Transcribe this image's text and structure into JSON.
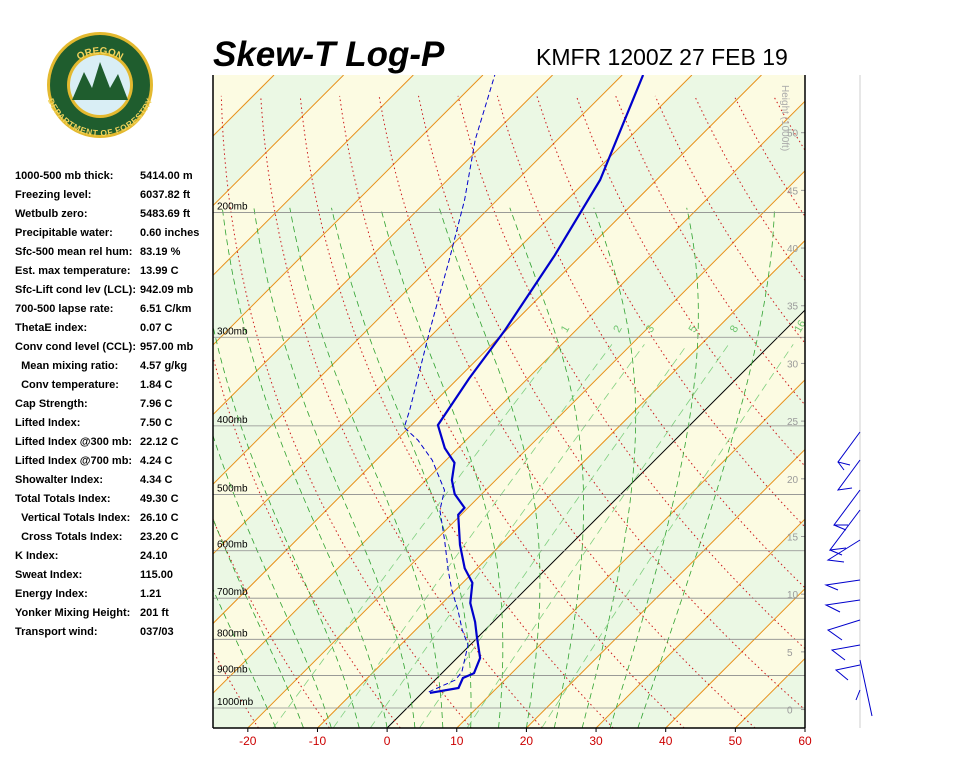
{
  "logo": {
    "top": "OREGON",
    "bottom": "DEPARTMENT OF FORESTRY"
  },
  "stats": [
    [
      "1000-500 mb thick:",
      "5414.00 m"
    ],
    [
      "Freezing level:",
      "6037.82 ft"
    ],
    [
      "Wetbulb zero:",
      "5483.69 ft"
    ],
    [
      "Precipitable water:",
      "0.60 inches"
    ],
    [
      "Sfc-500 mean rel hum:",
      "83.19 %"
    ],
    [
      "Est. max temperature:",
      "13.99 C"
    ],
    [
      "Sfc-Lift cond lev (LCL):",
      "942.09 mb"
    ],
    [
      "700-500 lapse rate:",
      "6.51 C/km"
    ],
    [
      "ThetaE index:",
      "0.07 C"
    ],
    [
      "Conv cond level (CCL):",
      "957.00 mb"
    ],
    [
      "  Mean mixing ratio:",
      "4.57 g/kg"
    ],
    [
      "  Conv temperature:",
      "1.84 C"
    ],
    [
      "Cap Strength:",
      "7.96 C"
    ],
    [
      "Lifted Index:",
      "7.50 C"
    ],
    [
      "Lifted Index @300 mb:",
      "22.12 C"
    ],
    [
      "Lifted Index @700 mb:",
      "4.24 C"
    ],
    [
      "Showalter Index:",
      "4.34 C"
    ],
    [
      "Total Totals Index:",
      "49.30 C"
    ],
    [
      "  Vertical Totals Index:",
      "26.10 C"
    ],
    [
      "  Cross Totals Index:",
      "23.20 C"
    ],
    [
      "K Index:",
      "24.10"
    ],
    [
      "Sweat Index:",
      "115.00"
    ],
    [
      "Energy Index:",
      "1.21"
    ],
    [
      "Yonker Mixing Height:",
      "201 ft"
    ],
    [
      "Transport wind:",
      "037/03"
    ]
  ],
  "chart_data": {
    "type": "skewt",
    "title": "Skew-T Log-P",
    "subtitle": "KMFR 1200Z 27 FEB 19",
    "xlim": [
      -25,
      60
    ],
    "xticks": [
      -20,
      -10,
      0,
      10,
      20,
      30,
      40,
      50,
      60
    ],
    "ylim": [
      1067,
      128
    ],
    "log_y": true,
    "yticks": [
      {
        "value": 1000,
        "label": "1000mb"
      },
      {
        "value": 900,
        "label": "900mb"
      },
      {
        "value": 800,
        "label": "800mb"
      },
      {
        "value": 700,
        "label": "700mb"
      },
      {
        "value": 600,
        "label": "600mb"
      },
      {
        "value": 500,
        "label": "500mb"
      },
      {
        "value": 400,
        "label": "400mb"
      },
      {
        "value": 300,
        "label": "300mb"
      },
      {
        "value": 200,
        "label": "200mb"
      }
    ],
    "y2label": "Height (1000ft)",
    "y2lim": [
      -1.6,
      55
    ],
    "y2ticks": [
      0,
      5,
      10,
      15,
      20,
      25,
      30,
      35,
      40,
      45,
      50
    ],
    "mixing_ratio_labels": [
      1,
      2,
      3,
      5,
      8,
      16
    ],
    "series": [
      {
        "color": "#0000cc",
        "style": "solid",
        "pressure": [
          952,
          937,
          907,
          893,
          850,
          792,
          756,
          711,
          666,
          635,
          589,
          534,
          522,
          499,
          477,
          451,
          430,
          399,
          343,
          293,
          230,
          180,
          128
        ],
        "values": [
          1.1,
          4.5,
          3.7,
          4.6,
          3.3,
          -0.3,
          -2.6,
          -6.0,
          -8.6,
          -11.8,
          -15.8,
          -20.4,
          -20.5,
          -23.9,
          -26.3,
          -28.4,
          -31.9,
          -36.2,
          -38.4,
          -40.2,
          -43.8,
          -48.1,
          -57.0
        ]
      },
      {
        "color": "#0000cc",
        "style": "dashed",
        "pressure": [
          949,
          913,
          890,
          815,
          776,
          727,
          682,
          639,
          580,
          526,
          493,
          447,
          419,
          402,
          380,
          293,
          234,
          192,
          158,
          128
        ],
        "values": [
          0.8,
          2.9,
          2.7,
          -0.3,
          -3.3,
          -6.8,
          -10.5,
          -13.9,
          -18.7,
          -23.7,
          -25.9,
          -32.0,
          -36.9,
          -40.7,
          -42.4,
          -51.0,
          -58.2,
          -64.7,
          -71.8,
          -78.3
        ]
      }
    ]
  }
}
